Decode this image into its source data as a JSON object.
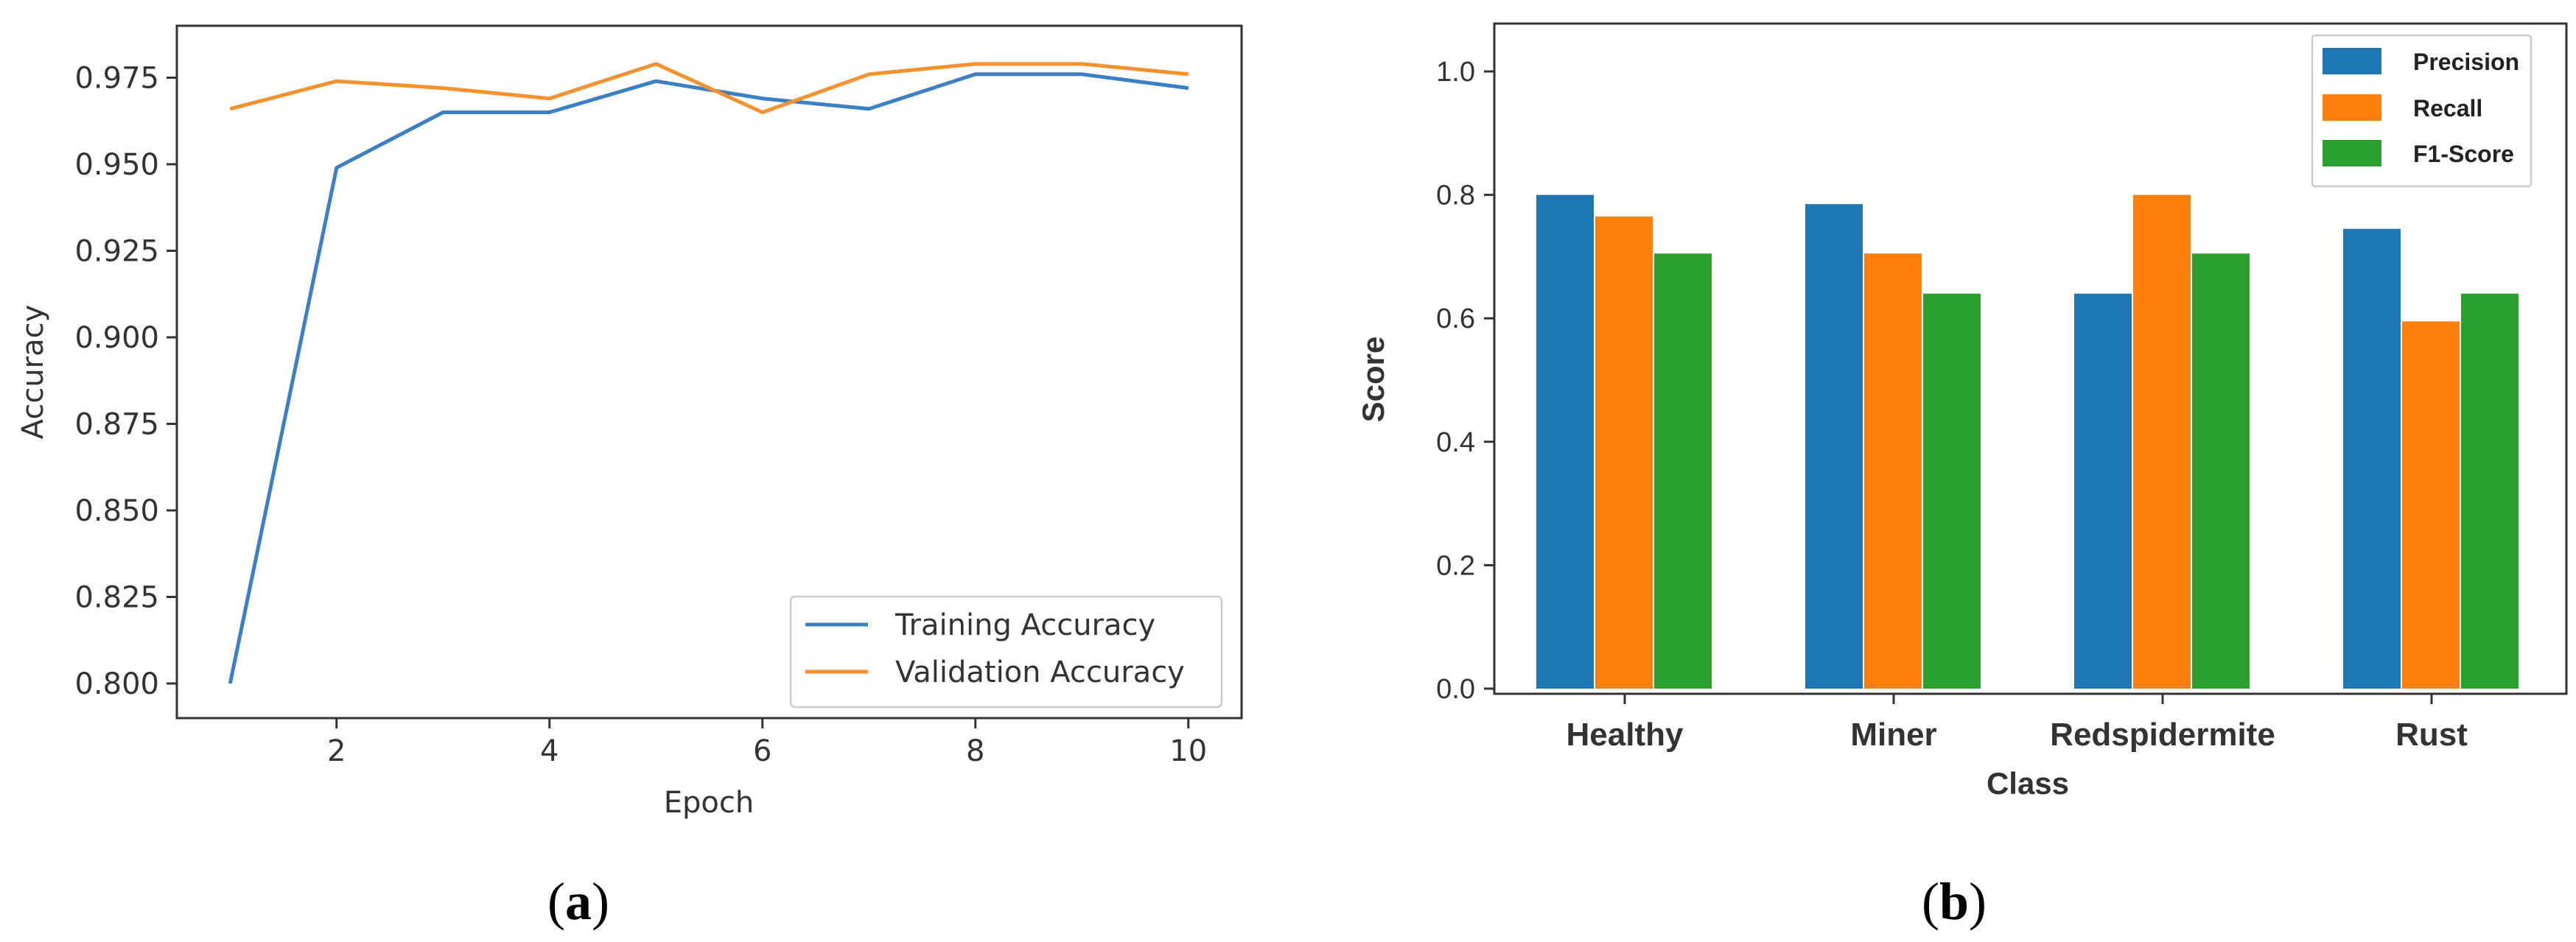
{
  "captions": {
    "a": {
      "open": "(",
      "letter": "a",
      "close": ")"
    },
    "b": {
      "open": "(",
      "letter": "b",
      "close": ")"
    }
  },
  "chart_data": [
    {
      "id": "a",
      "type": "line",
      "title": "",
      "xlabel": "Epoch",
      "ylabel": "Accuracy",
      "xlim": [
        0.5,
        10.5
      ],
      "ylim": [
        0.79,
        0.99
      ],
      "xticks": [
        2,
        4,
        6,
        8,
        10
      ],
      "xtick_labels": [
        "2",
        "4",
        "6",
        "8",
        "10"
      ],
      "yticks": [
        0.8,
        0.825,
        0.85,
        0.875,
        0.9,
        0.925,
        0.95,
        0.975
      ],
      "ytick_labels": [
        "0.800",
        "0.825",
        "0.850",
        "0.875",
        "0.900",
        "0.925",
        "0.950",
        "0.975"
      ],
      "x": [
        1,
        2,
        3,
        4,
        5,
        6,
        7,
        8,
        9,
        10
      ],
      "series": [
        {
          "name": "Training Accuracy",
          "color": "#3b7fc4",
          "values": [
            0.8,
            0.949,
            0.965,
            0.965,
            0.974,
            0.969,
            0.966,
            0.976,
            0.976,
            0.972
          ]
        },
        {
          "name": "Validation Accuracy",
          "color": "#f5912e",
          "values": [
            0.966,
            0.974,
            0.972,
            0.969,
            0.979,
            0.965,
            0.976,
            0.979,
            0.979,
            0.976
          ]
        }
      ],
      "legend_position": "lower-right",
      "grid": false
    },
    {
      "id": "b",
      "type": "bar",
      "title": "",
      "xlabel": "Class",
      "ylabel": "Score",
      "ylim": [
        0,
        1.07
      ],
      "yticks": [
        0.0,
        0.2,
        0.4,
        0.6,
        0.8,
        1.0
      ],
      "ytick_labels": [
        "0.0",
        "0.2",
        "0.4",
        "0.6",
        "0.8",
        "1.0"
      ],
      "categories": [
        "Healthy",
        "Miner",
        "Redspidermite",
        "Rust"
      ],
      "series": [
        {
          "name": "Precision",
          "color": "#1f77b4",
          "values": [
            0.8,
            0.785,
            0.64,
            0.745
          ]
        },
        {
          "name": "Recall",
          "color": "#ff7f0e",
          "values": [
            0.765,
            0.705,
            0.8,
            0.595
          ]
        },
        {
          "name": "F1-Score",
          "color": "#2ca02c",
          "values": [
            0.705,
            0.64,
            0.705,
            0.64
          ]
        }
      ],
      "legend_position": "top-right",
      "grid": false
    }
  ]
}
